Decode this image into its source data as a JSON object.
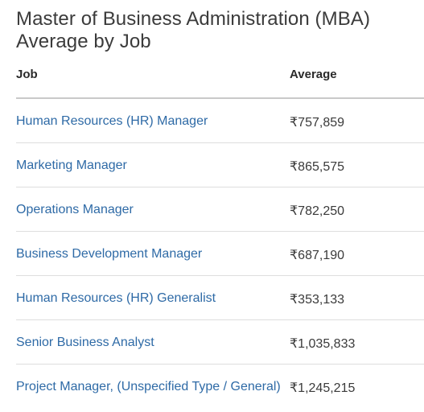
{
  "title": {
    "line1": "Master of Business Administration (MBA)",
    "line2": "Average by Job"
  },
  "table": {
    "headers": {
      "job": "Job",
      "average": "Average"
    },
    "rows": [
      {
        "job": "Human Resources (HR) Manager",
        "average": "₹757,859"
      },
      {
        "job": "Marketing Manager",
        "average": "₹865,575"
      },
      {
        "job": "Operations Manager",
        "average": "₹782,250"
      },
      {
        "job": "Business Development Manager",
        "average": "₹687,190"
      },
      {
        "job": "Human Resources (HR) Generalist",
        "average": "₹353,133"
      },
      {
        "job": "Senior Business Analyst",
        "average": "₹1,035,833"
      },
      {
        "job": "Project Manager, (Unspecified Type / General)",
        "average": "₹1,245,215"
      }
    ]
  },
  "colors": {
    "link": "#2e6aa6",
    "title": "#3b3b3b",
    "divider": "#dedede"
  }
}
